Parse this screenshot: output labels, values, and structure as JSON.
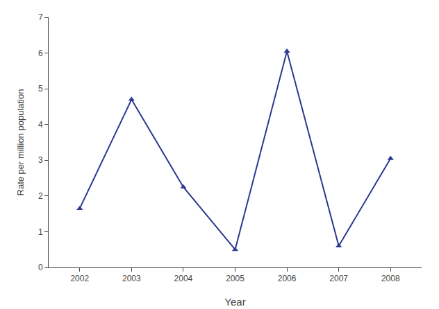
{
  "chart_data": {
    "type": "line",
    "x": [
      2002,
      2003,
      2004,
      2005,
      2006,
      2007,
      2008
    ],
    "values": [
      1.65,
      4.7,
      2.25,
      0.5,
      6.05,
      0.6,
      3.05
    ],
    "xlabel": "Year",
    "ylabel": "Rate per million population",
    "xlim": [
      2001.4,
      2008.6
    ],
    "xticks": [
      2002,
      2003,
      2004,
      2005,
      2006,
      2007,
      2008
    ],
    "ylim": [
      0,
      7
    ],
    "yticks": [
      0,
      1,
      2,
      3,
      4,
      5,
      6,
      7
    ],
    "color": "#2b3990",
    "marker": "triangle",
    "grid": false
  }
}
